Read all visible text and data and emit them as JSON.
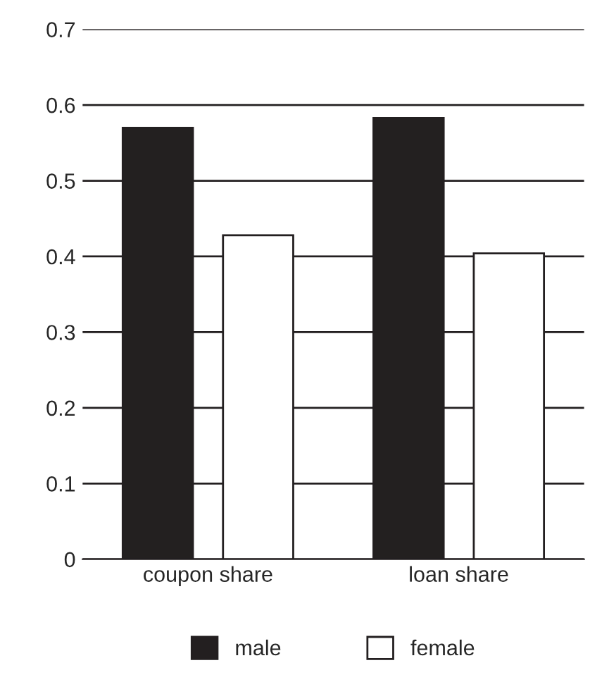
{
  "chart_data": {
    "type": "bar",
    "categories": [
      "coupon share",
      "loan share"
    ],
    "series": [
      {
        "name": "male",
        "color": "#231f20",
        "values": [
          0.57,
          0.583
        ]
      },
      {
        "name": "female",
        "color": "#ffffff",
        "values": [
          0.428,
          0.404
        ]
      }
    ],
    "ylim": [
      0,
      0.7
    ],
    "yticks": [
      0,
      0.1,
      0.2,
      0.3,
      0.4,
      0.5,
      0.6,
      0.7
    ],
    "grid": "y",
    "legend": "bottom"
  }
}
